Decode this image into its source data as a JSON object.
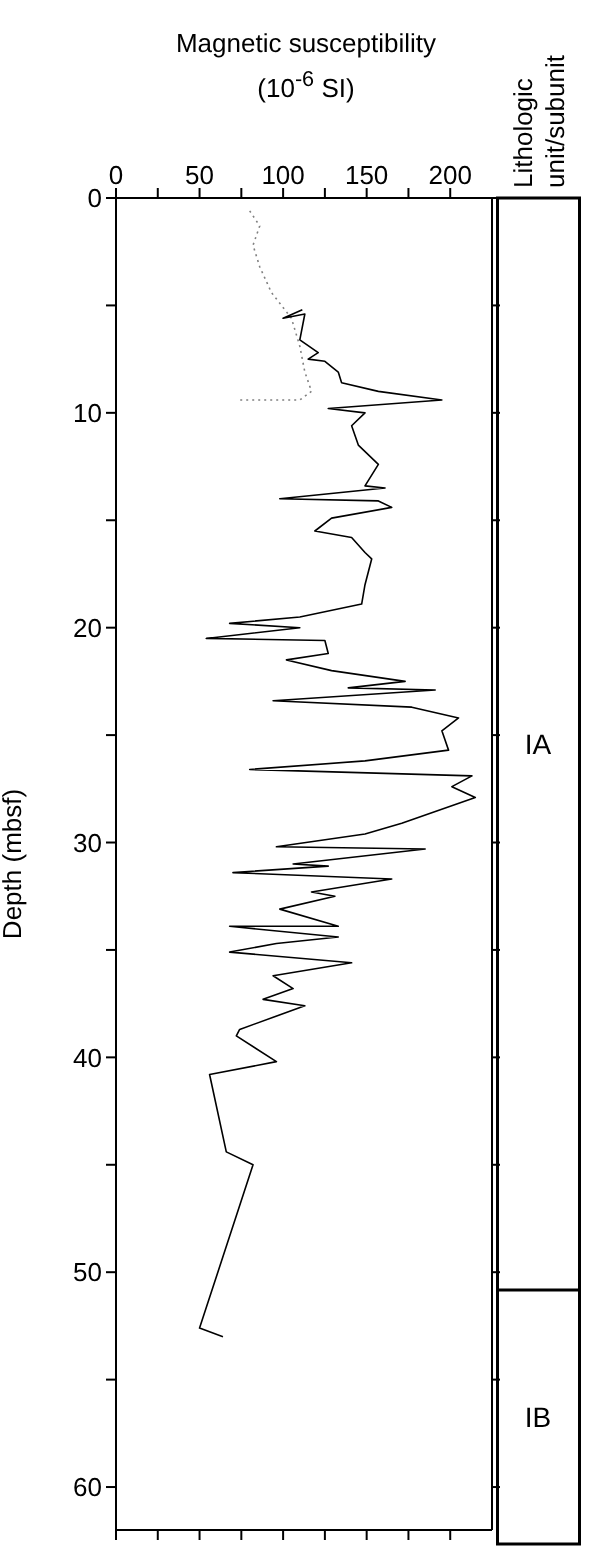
{
  "chart_data": [
    {
      "type": "line",
      "xlabel": "Magnetic susceptibility (10$^{-6}$ SI)",
      "ylabel": "Depth (mbsf)",
      "xlim": [
        0,
        225
      ],
      "xticks": [
        0,
        {
          "value": 25,
          "label": null
        },
        50,
        {
          "value": 75,
          "label": null
        },
        100,
        {
          "value": 125,
          "label": null
        },
        150,
        {
          "value": 175,
          "label": null
        },
        200
      ],
      "ylim": [
        62,
        0
      ],
      "yticks": [
        0,
        {
          "value": 5,
          "label": null
        },
        10,
        {
          "value": 15,
          "label": null
        },
        20,
        {
          "value": 25,
          "label": null
        },
        30,
        {
          "value": 35,
          "label": null
        },
        40,
        {
          "value": 45,
          "label": null
        },
        50,
        {
          "value": 55,
          "label": null
        },
        60
      ],
      "marker": "none",
      "series": [
        {
          "color": "#808080",
          "line_style": "dotted",
          "x": [
            80,
            86,
            82,
            86,
            93,
            105,
            110,
            113,
            117,
            110,
            74
          ],
          "values": [
            0.6,
            1.3,
            2.2,
            3.2,
            4.4,
            5.6,
            6.9,
            8.1,
            9.0,
            9.4,
            9.4
          ]
        },
        {
          "color": "#000000",
          "line_style": "solid",
          "x": [
            111.5,
            100,
            113,
            110,
            121,
            115,
            125,
            133,
            135,
            157,
            195,
            127,
            149,
            141,
            145,
            157,
            149,
            161,
            98,
            157,
            165,
            129,
            119,
            141,
            149,
            153,
            149,
            147,
            110,
            68,
            110,
            54,
            125,
            127,
            102,
            129,
            173,
            139,
            191,
            94,
            177,
            205,
            195,
            199,
            149,
            80,
            213,
            201,
            215,
            171,
            149,
            96,
            185,
            106,
            127,
            70,
            165,
            117,
            131,
            98,
            133,
            68,
            133,
            96,
            68,
            141,
            94,
            106,
            88,
            113,
            74,
            72,
            96,
            56,
            null,
            66,
            82,
            null,
            50,
            64
          ],
          "values": [
            5.2,
            5.6,
            5.4,
            6.6,
            7.2,
            7.5,
            7.6,
            8.1,
            8.6,
            9.0,
            9.4,
            9.8,
            10.0,
            10.6,
            11.5,
            12.4,
            13.4,
            13.5,
            14.0,
            14.1,
            14.4,
            14.9,
            15.5,
            15.8,
            16.5,
            16.8,
            18.0,
            18.9,
            19.5,
            19.8,
            20.0,
            20.5,
            20.6,
            21.2,
            21.5,
            22.0,
            22.5,
            22.8,
            22.9,
            23.4,
            23.7,
            24.2,
            24.8,
            25.7,
            26.2,
            26.6,
            26.9,
            27.4,
            27.9,
            29.1,
            29.6,
            30.2,
            30.3,
            31.0,
            31.1,
            31.4,
            31.7,
            32.3,
            32.5,
            33.1,
            33.9,
            33.9,
            34.4,
            34.7,
            35.1,
            35.6,
            36.2,
            36.8,
            37.3,
            37.6,
            38.7,
            39.0,
            40.2,
            40.8,
            null,
            44.4,
            45.0,
            null,
            52.6,
            53.0
          ]
        }
      ]
    },
    {
      "type": "other",
      "title": "Lithologic unit/subunit",
      "annotations": [
        "IA",
        "IB"
      ]
    }
  ]
}
